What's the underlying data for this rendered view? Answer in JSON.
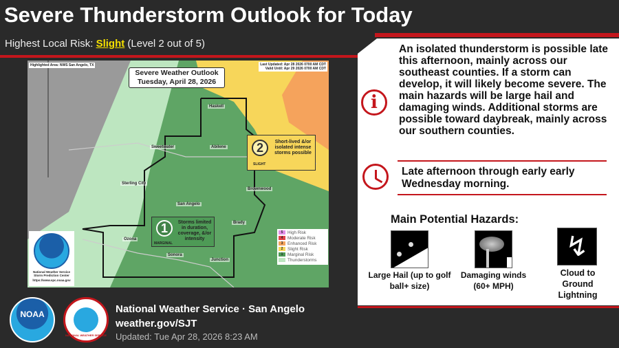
{
  "header": {
    "title": "Severe Thunderstorm Outlook for Today",
    "risk_prefix": "Highest Local Risk: ",
    "risk_level": "Slight",
    "risk_suffix": " (Level 2 out of 5)"
  },
  "map": {
    "highlighted_area": "Highlighted Area: NWS San Angelo, TX",
    "last_updated": "Last Updated: Apr 28 2026 0700 AM CDT",
    "valid_until": "Valid Until: Apr 29 2026 0700 AM CDT",
    "outlook_title": "Severe Weather Outlook",
    "outlook_date": "Tuesday, April 28, 2026",
    "cities": [
      "Haskell",
      "Sweetwater",
      "Abilene",
      "Sterling City",
      "Brownwood",
      "San Angelo",
      "Brady",
      "Ozona",
      "Sonora",
      "Junction"
    ],
    "slight_box": {
      "number": "2",
      "label": "SLIGHT",
      "text": "Short-lived &/or isolated intense storms possible"
    },
    "marginal_box": {
      "number": "1",
      "label": "MARGINAL",
      "text": "Storms limited in duration, coverage, &/or intensity"
    },
    "legend": [
      {
        "num": "5",
        "label": "High Risk",
        "color": "#e28ee8"
      },
      {
        "num": "4",
        "label": "Moderate Risk",
        "color": "#e0424a"
      },
      {
        "num": "3",
        "label": "Enhanced Risk",
        "color": "#f5a35c"
      },
      {
        "num": "2",
        "label": "Slight Risk",
        "color": "#f7d65a"
      },
      {
        "num": "1",
        "label": "Marginal Risk",
        "color": "#4e9a56"
      },
      {
        "num": "",
        "label": "Thunderstorms",
        "color": "#bde6c0"
      }
    ],
    "noaa_card": {
      "line1": "National Weather Service",
      "line2": "Storm Prediction Center",
      "line3": "https://www.spc.noaa.gov"
    }
  },
  "panel": {
    "summary": "An isolated thunderstorm is possible late this afternoon, mainly across our southeast counties.  If a storm can develop, it will likely become severe. The main hazards will be large hail and damaging winds. Additional storms are possible toward daybreak, mainly across our southern counties.",
    "timing": "Late afternoon through early early Wednesday morning.",
    "hazards_title": "Main Potential Hazards:",
    "hazards": [
      {
        "icon": "hail-icon",
        "label": "Large Hail (up to golf ball+ size)"
      },
      {
        "icon": "wind-icon",
        "label": "Damaging winds (60+ MPH)"
      },
      {
        "icon": "lightning-icon",
        "label": "Cloud to Ground Lightning"
      }
    ]
  },
  "footer": {
    "office": "National Weather Service · San Angelo",
    "url": "weather.gov/SJT",
    "updated": "Updated: Tue Apr 28, 2026 8:23 AM",
    "noaa_logo_text": "NOAA",
    "nws_logo_text": "NATIONAL WEATHER SERVICE"
  },
  "colors": {
    "accent_red": "#c4161c",
    "slight_yellow": "#f5e000",
    "background": "#2a2a2a"
  }
}
